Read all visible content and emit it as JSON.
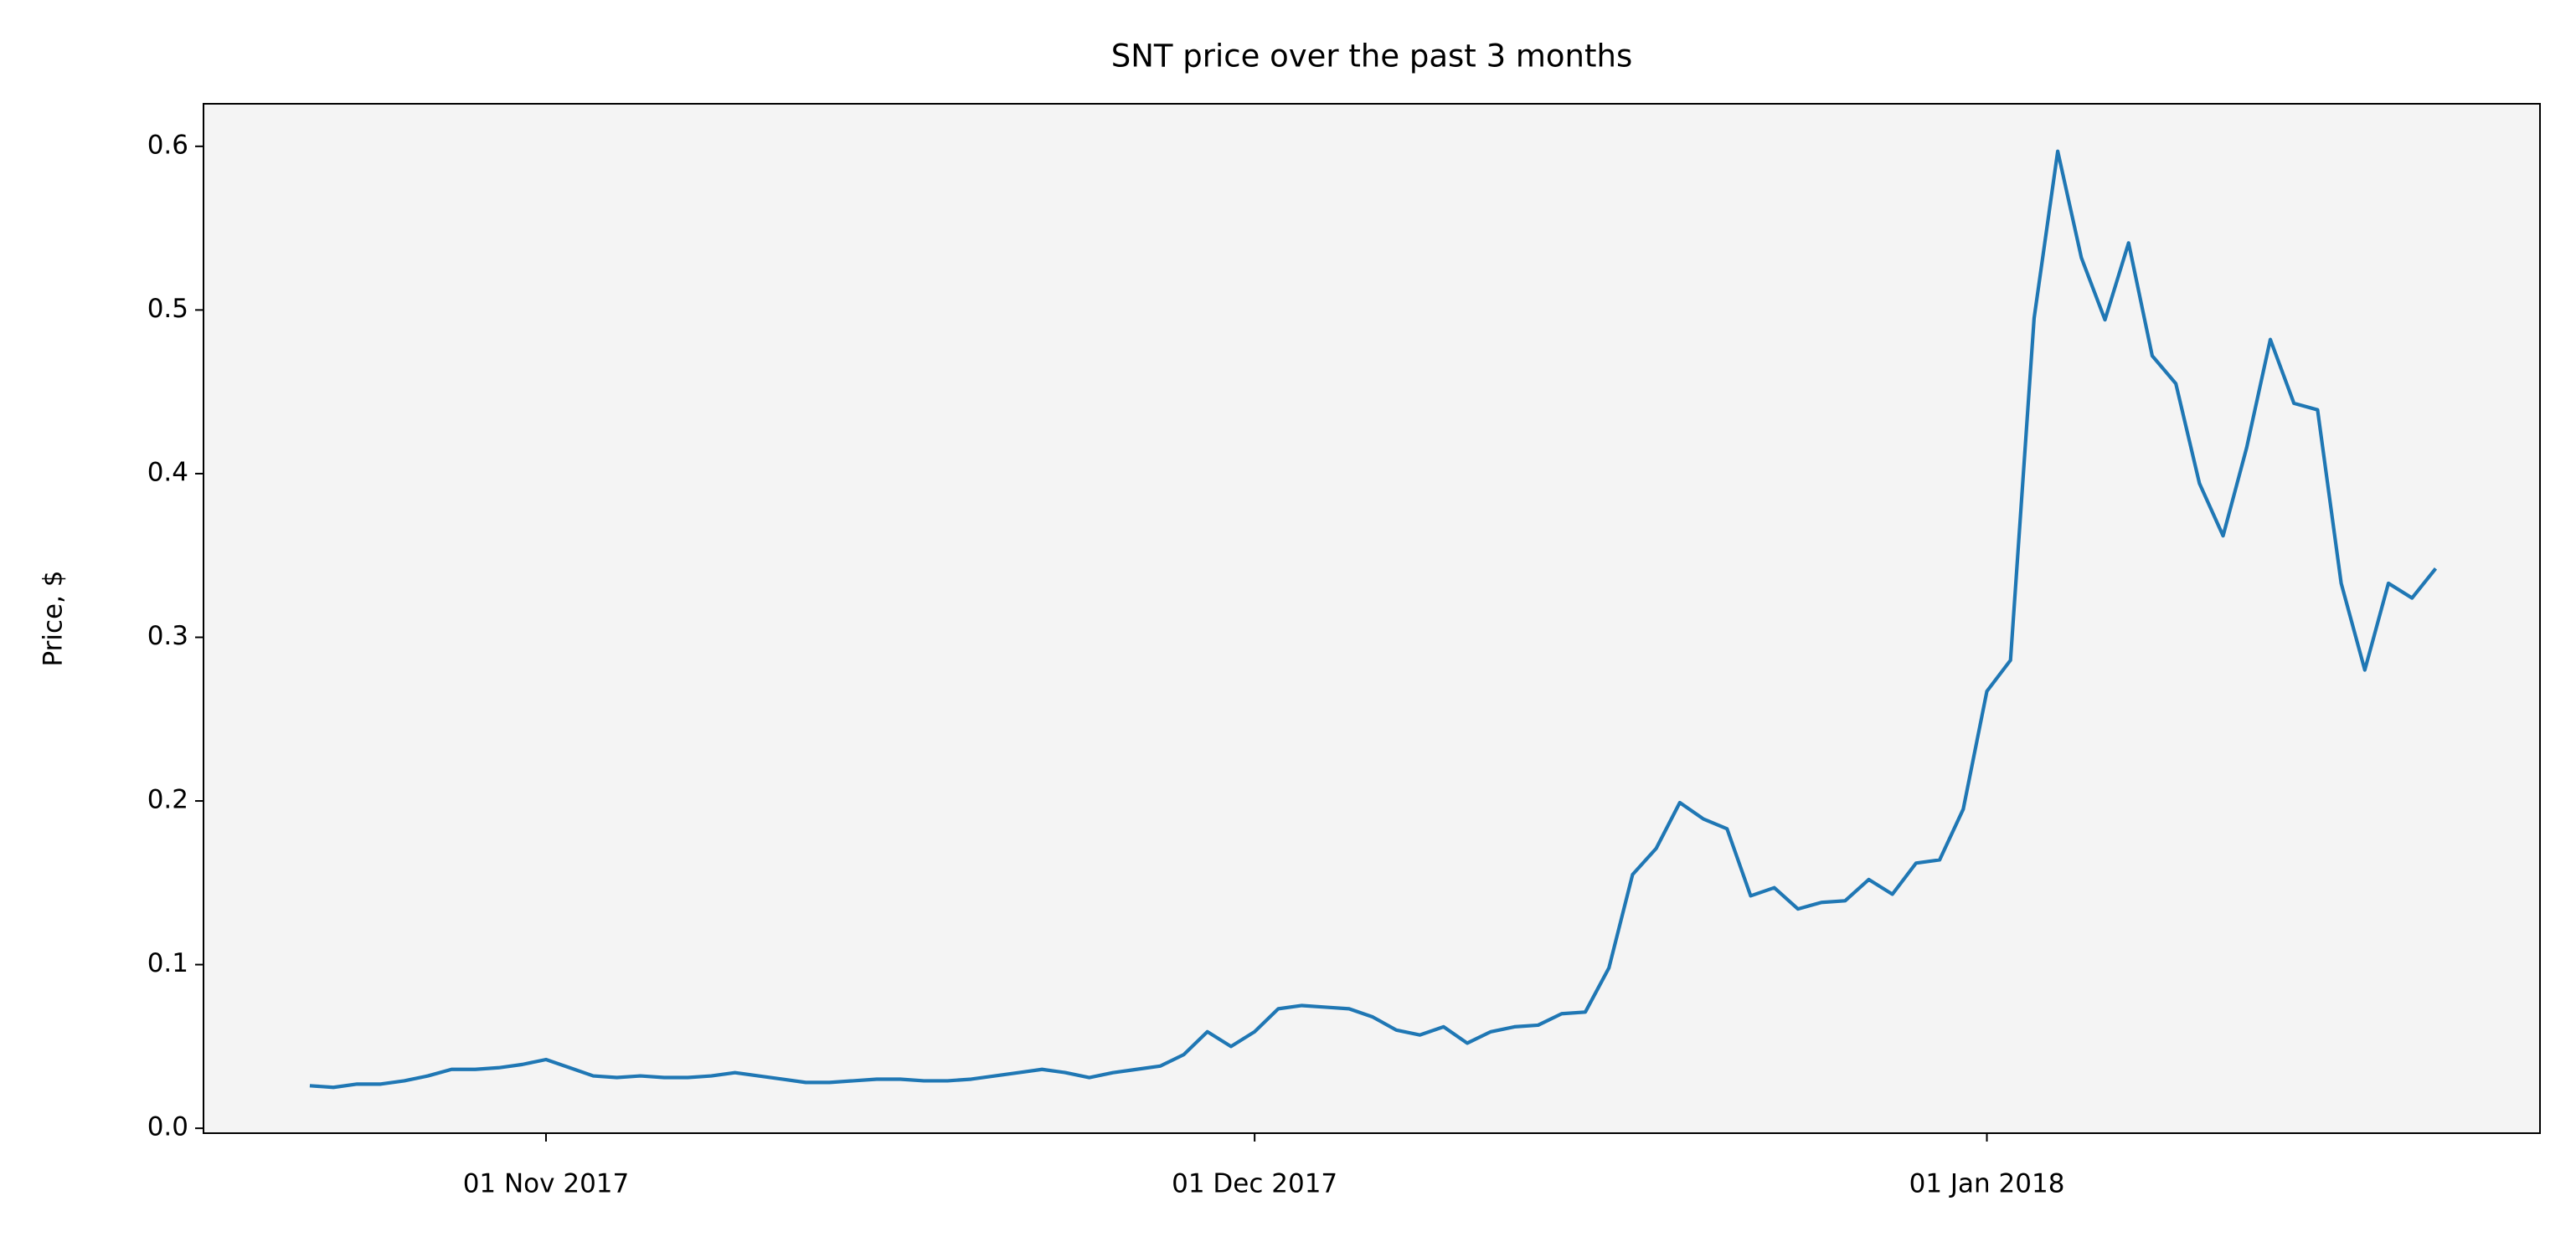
{
  "chart_data": {
    "type": "line",
    "title": "SNT price over the past 3 months",
    "ylabel": "Price, $",
    "color": "#1f77b4",
    "x": [
      "2017-10-22",
      "2017-10-23",
      "2017-10-24",
      "2017-10-25",
      "2017-10-26",
      "2017-10-27",
      "2017-10-28",
      "2017-10-29",
      "2017-10-30",
      "2017-10-31",
      "2017-11-01",
      "2017-11-02",
      "2017-11-03",
      "2017-11-04",
      "2017-11-05",
      "2017-11-06",
      "2017-11-07",
      "2017-11-08",
      "2017-11-09",
      "2017-11-10",
      "2017-11-11",
      "2017-11-12",
      "2017-11-13",
      "2017-11-14",
      "2017-11-15",
      "2017-11-16",
      "2017-11-17",
      "2017-11-18",
      "2017-11-19",
      "2017-11-20",
      "2017-11-21",
      "2017-11-22",
      "2017-11-23",
      "2017-11-24",
      "2017-11-25",
      "2017-11-26",
      "2017-11-27",
      "2017-11-28",
      "2017-11-29",
      "2017-11-30",
      "2017-12-01",
      "2017-12-02",
      "2017-12-03",
      "2017-12-04",
      "2017-12-05",
      "2017-12-06",
      "2017-12-07",
      "2017-12-08",
      "2017-12-09",
      "2017-12-10",
      "2017-12-11",
      "2017-12-12",
      "2017-12-13",
      "2017-12-14",
      "2017-12-15",
      "2017-12-16",
      "2017-12-17",
      "2017-12-18",
      "2017-12-19",
      "2017-12-20",
      "2017-12-21",
      "2017-12-22",
      "2017-12-23",
      "2017-12-24",
      "2017-12-25",
      "2017-12-26",
      "2017-12-27",
      "2017-12-28",
      "2017-12-29",
      "2017-12-30",
      "2017-12-31",
      "2018-01-01",
      "2018-01-02",
      "2018-01-03",
      "2018-01-04",
      "2018-01-05",
      "2018-01-06",
      "2018-01-07",
      "2018-01-08",
      "2018-01-09",
      "2018-01-10",
      "2018-01-11",
      "2018-01-12",
      "2018-01-13",
      "2018-01-14",
      "2018-01-15",
      "2018-01-16",
      "2018-01-17",
      "2018-01-18",
      "2018-01-19",
      "2018-01-20"
    ],
    "values": [
      0.026,
      0.025,
      0.027,
      0.027,
      0.029,
      0.032,
      0.036,
      0.036,
      0.037,
      0.039,
      0.042,
      0.037,
      0.032,
      0.031,
      0.032,
      0.031,
      0.031,
      0.032,
      0.034,
      0.032,
      0.03,
      0.028,
      0.028,
      0.029,
      0.03,
      0.03,
      0.029,
      0.029,
      0.03,
      0.032,
      0.034,
      0.036,
      0.034,
      0.031,
      0.034,
      0.036,
      0.038,
      0.045,
      0.059,
      0.05,
      0.059,
      0.073,
      0.075,
      0.074,
      0.073,
      0.068,
      0.06,
      0.057,
      0.062,
      0.052,
      0.059,
      0.062,
      0.063,
      0.07,
      0.071,
      0.098,
      0.155,
      0.171,
      0.199,
      0.189,
      0.183,
      0.142,
      0.147,
      0.134,
      0.138,
      0.139,
      0.152,
      0.143,
      0.162,
      0.164,
      0.195,
      0.267,
      0.286,
      0.495,
      0.597,
      0.532,
      0.494,
      0.541,
      0.472,
      0.455,
      0.394,
      0.362,
      0.416,
      0.482,
      0.443,
      0.439,
      0.333,
      0.28,
      0.333,
      0.324,
      0.342
    ],
    "xlim": [
      "2017-10-17T12:00:00Z",
      "2018-01-24T10:00:00Z"
    ],
    "xticks": [
      {
        "value": "2017-11-01",
        "label": "01 Nov 2017"
      },
      {
        "value": "2017-12-01",
        "label": "01 Dec 2017"
      },
      {
        "value": "2018-01-01",
        "label": "01 Jan 2018"
      }
    ],
    "ylim": [
      -0.003,
      0.626
    ],
    "yticks": [
      {
        "value": 0,
        "label": "0.0"
      },
      0.1,
      0.2,
      0.3,
      0.4,
      0.5,
      0.6
    ],
    "grid": false
  }
}
